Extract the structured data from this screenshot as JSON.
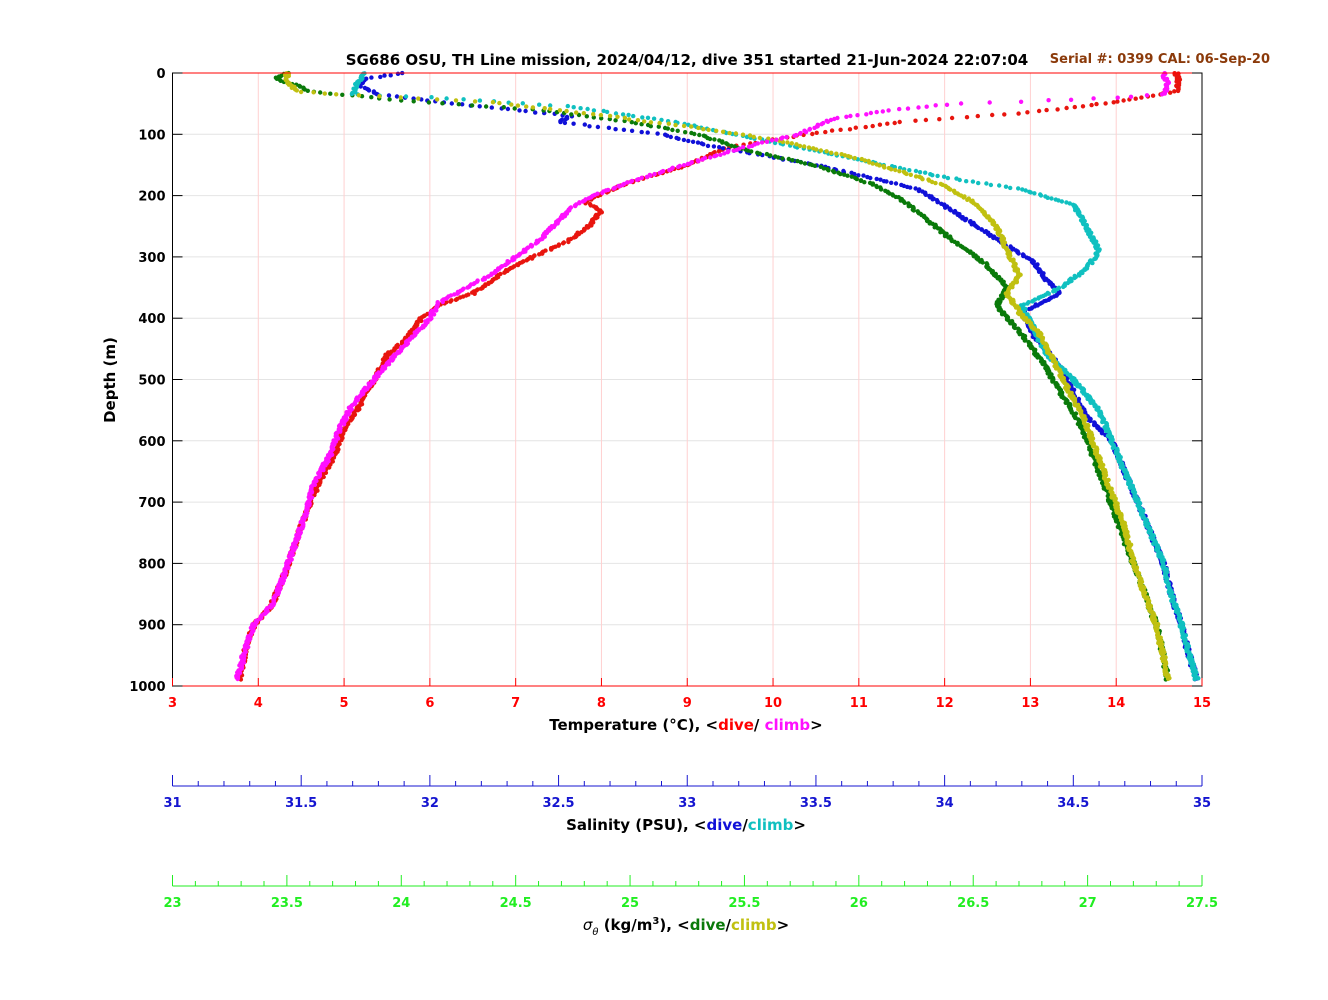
{
  "chart_data": {
    "type": "scatter",
    "title": "SG686 OSU, TH Line mission, 2024/04/12, dive 351 started 21-Jun-2024 22:07:04",
    "annotation": "Serial #: 0399  CAL: 06-Sep-20",
    "ylabel": "Depth (m)",
    "ylim": [
      0,
      1000
    ],
    "y_reversed": true,
    "y_ticks": [
      "0",
      "100",
      "200",
      "300",
      "400",
      "500",
      "600",
      "700",
      "800",
      "900",
      "1000"
    ],
    "grid": true,
    "axes": {
      "temperature": {
        "label_prefix": "Temperature (°C), <",
        "label_dive": "dive",
        "label_sep": "/ ",
        "label_climb": "climb",
        "label_suffix": ">",
        "range": [
          3,
          15
        ],
        "ticks": [
          "3",
          "4",
          "5",
          "6",
          "7",
          "8",
          "9",
          "10",
          "11",
          "12",
          "13",
          "14",
          "15"
        ],
        "color": "#ff0000",
        "dive_color": "#e8150e",
        "climb_color": "#ff10ff"
      },
      "salinity": {
        "label_prefix": "Salinity (PSU), <",
        "label_dive": "dive",
        "label_sep": "/",
        "label_climb": "climb",
        "label_suffix": ">",
        "range": [
          31,
          35
        ],
        "ticks": [
          "31",
          "31.5",
          "32",
          "32.5",
          "33",
          "33.5",
          "34",
          "34.5",
          "35"
        ],
        "color": "#1515d0",
        "dive_color": "#1010d8",
        "climb_color": "#10c0c0"
      },
      "density": {
        "label_sigma": "σ",
        "label_theta": "θ",
        "label_units_pre": " (kg/m",
        "label_units_sup": "3",
        "label_prefix": "), <",
        "label_dive": "dive",
        "label_sep": "/",
        "label_climb": "climb",
        "label_suffix": ">",
        "range": [
          23,
          27.5
        ],
        "ticks": [
          "23",
          "23.5",
          "24",
          "24.5",
          "25",
          "25.5",
          "26",
          "26.5",
          "27",
          "27.5"
        ],
        "color": "#22ee22",
        "dive_color": "#0a7a0a",
        "climb_color": "#c0c010"
      }
    },
    "series": [
      {
        "name": "dive",
        "quantity": "temperature",
        "points": [
          [
            14.7,
            0
          ],
          [
            14.72,
            10
          ],
          [
            14.7,
            30
          ],
          [
            14.1,
            45
          ],
          [
            13.6,
            55
          ],
          [
            12.9,
            65
          ],
          [
            11.5,
            80
          ],
          [
            10.4,
            100
          ],
          [
            9.5,
            120
          ],
          [
            9.0,
            150
          ],
          [
            8.3,
            180
          ],
          [
            7.8,
            210
          ],
          [
            8.0,
            225
          ],
          [
            7.85,
            250
          ],
          [
            7.6,
            275
          ],
          [
            7.2,
            300
          ],
          [
            6.8,
            330
          ],
          [
            6.5,
            360
          ],
          [
            6.1,
            380
          ],
          [
            5.9,
            400
          ],
          [
            5.75,
            430
          ],
          [
            5.5,
            460
          ],
          [
            5.35,
            500
          ],
          [
            5.15,
            550
          ],
          [
            5.0,
            580
          ],
          [
            4.9,
            620
          ],
          [
            4.7,
            670
          ],
          [
            4.55,
            720
          ],
          [
            4.45,
            760
          ],
          [
            4.3,
            820
          ],
          [
            4.15,
            870
          ],
          [
            3.95,
            900
          ],
          [
            3.85,
            940
          ],
          [
            3.78,
            990
          ]
        ]
      },
      {
        "name": "climb",
        "quantity": "temperature",
        "points": [
          [
            14.55,
            0
          ],
          [
            14.6,
            20
          ],
          [
            14.55,
            35
          ],
          [
            14.0,
            40
          ],
          [
            13.2,
            45
          ],
          [
            12.1,
            50
          ],
          [
            11.4,
            60
          ],
          [
            10.7,
            75
          ],
          [
            10.3,
            100
          ],
          [
            9.7,
            120
          ],
          [
            9.2,
            140
          ],
          [
            8.5,
            170
          ],
          [
            7.9,
            200
          ],
          [
            7.7,
            215
          ],
          [
            7.5,
            240
          ],
          [
            7.3,
            270
          ],
          [
            7.0,
            300
          ],
          [
            6.7,
            330
          ],
          [
            6.3,
            360
          ],
          [
            6.1,
            375
          ],
          [
            6.0,
            400
          ],
          [
            5.8,
            430
          ],
          [
            5.6,
            460
          ],
          [
            5.35,
            500
          ],
          [
            5.1,
            540
          ],
          [
            4.95,
            580
          ],
          [
            4.85,
            620
          ],
          [
            4.65,
            670
          ],
          [
            4.55,
            720
          ],
          [
            4.45,
            760
          ],
          [
            4.3,
            820
          ],
          [
            4.15,
            870
          ],
          [
            3.95,
            900
          ],
          [
            3.85,
            940
          ],
          [
            3.75,
            990
          ]
        ]
      },
      {
        "name": "dive",
        "quantity": "salinity",
        "points": [
          [
            31.9,
            0
          ],
          [
            31.75,
            10
          ],
          [
            31.72,
            20
          ],
          [
            31.8,
            35
          ],
          [
            32.1,
            50
          ],
          [
            32.55,
            70
          ],
          [
            32.5,
            80
          ],
          [
            32.9,
            100
          ],
          [
            33.1,
            120
          ],
          [
            33.5,
            150
          ],
          [
            33.9,
            190
          ],
          [
            34.05,
            230
          ],
          [
            34.2,
            270
          ],
          [
            34.35,
            310
          ],
          [
            34.4,
            340
          ],
          [
            34.45,
            360
          ],
          [
            34.3,
            390
          ],
          [
            34.35,
            430
          ],
          [
            34.45,
            480
          ],
          [
            34.5,
            520
          ],
          [
            34.55,
            560
          ],
          [
            34.65,
            600
          ],
          [
            34.7,
            650
          ],
          [
            34.75,
            700
          ],
          [
            34.8,
            750
          ],
          [
            34.85,
            800
          ],
          [
            34.88,
            850
          ],
          [
            34.92,
            900
          ],
          [
            34.95,
            950
          ],
          [
            34.98,
            990
          ]
        ]
      },
      {
        "name": "climb",
        "quantity": "salinity",
        "points": [
          [
            31.75,
            0
          ],
          [
            31.72,
            15
          ],
          [
            31.7,
            35
          ],
          [
            32.0,
            40
          ],
          [
            32.2,
            45
          ],
          [
            32.55,
            55
          ],
          [
            32.95,
            80
          ],
          [
            33.3,
            110
          ],
          [
            33.65,
            140
          ],
          [
            34.0,
            170
          ],
          [
            34.3,
            190
          ],
          [
            34.5,
            215
          ],
          [
            34.55,
            250
          ],
          [
            34.6,
            290
          ],
          [
            34.55,
            320
          ],
          [
            34.45,
            350
          ],
          [
            34.3,
            380
          ],
          [
            34.35,
            420
          ],
          [
            34.4,
            460
          ],
          [
            34.5,
            500
          ],
          [
            34.6,
            550
          ],
          [
            34.65,
            600
          ],
          [
            34.7,
            650
          ],
          [
            34.75,
            700
          ],
          [
            34.8,
            750
          ],
          [
            34.85,
            800
          ],
          [
            34.88,
            850
          ],
          [
            34.92,
            900
          ],
          [
            34.95,
            950
          ],
          [
            34.98,
            990
          ]
        ]
      },
      {
        "name": "dive",
        "quantity": "density",
        "points": [
          [
            23.5,
            0
          ],
          [
            23.45,
            10
          ],
          [
            23.55,
            20
          ],
          [
            23.6,
            30
          ],
          [
            24.0,
            45
          ],
          [
            24.6,
            60
          ],
          [
            25.0,
            80
          ],
          [
            25.3,
            100
          ],
          [
            25.5,
            125
          ],
          [
            25.8,
            150
          ],
          [
            26.05,
            180
          ],
          [
            26.2,
            210
          ],
          [
            26.3,
            240
          ],
          [
            26.4,
            270
          ],
          [
            26.55,
            310
          ],
          [
            26.65,
            350
          ],
          [
            26.6,
            380
          ],
          [
            26.7,
            420
          ],
          [
            26.8,
            470
          ],
          [
            26.88,
            520
          ],
          [
            26.95,
            560
          ],
          [
            27.0,
            600
          ],
          [
            27.05,
            650
          ],
          [
            27.1,
            700
          ],
          [
            27.15,
            750
          ],
          [
            27.2,
            800
          ],
          [
            27.25,
            850
          ],
          [
            27.3,
            900
          ],
          [
            27.33,
            950
          ],
          [
            27.35,
            990
          ]
        ]
      },
      {
        "name": "climb",
        "quantity": "density",
        "points": [
          [
            23.5,
            0
          ],
          [
            23.5,
            15
          ],
          [
            23.55,
            30
          ],
          [
            23.7,
            35
          ],
          [
            24.0,
            40
          ],
          [
            24.4,
            48
          ],
          [
            24.9,
            70
          ],
          [
            25.3,
            90
          ],
          [
            25.65,
            110
          ],
          [
            26.0,
            140
          ],
          [
            26.35,
            180
          ],
          [
            26.5,
            210
          ],
          [
            26.6,
            250
          ],
          [
            26.65,
            290
          ],
          [
            26.7,
            330
          ],
          [
            26.65,
            360
          ],
          [
            26.7,
            390
          ],
          [
            26.8,
            430
          ],
          [
            26.85,
            470
          ],
          [
            26.92,
            520
          ],
          [
            26.98,
            560
          ],
          [
            27.02,
            600
          ],
          [
            27.07,
            650
          ],
          [
            27.12,
            700
          ],
          [
            27.17,
            750
          ],
          [
            27.2,
            800
          ],
          [
            27.25,
            850
          ],
          [
            27.3,
            900
          ],
          [
            27.33,
            950
          ],
          [
            27.35,
            990
          ]
        ]
      }
    ]
  }
}
